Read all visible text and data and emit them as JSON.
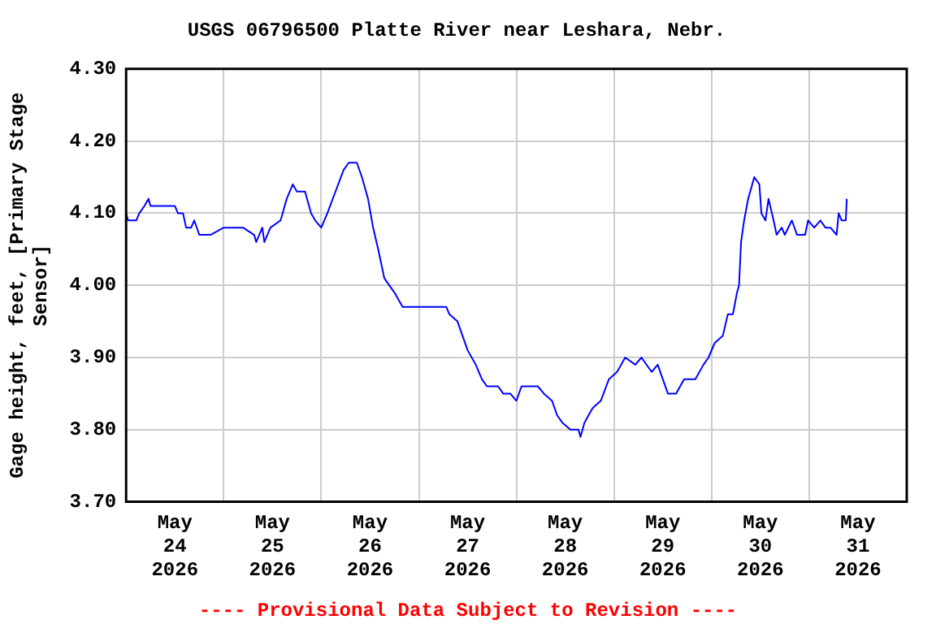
{
  "chart_data": {
    "type": "line",
    "title": "USGS 06796500 Platte River near Leshara, Nebr.",
    "ylabel": "Gage height, feet, [Primary Stage Sensor]",
    "annotations": [
      "---- Provisional Data Subject to Revision ----"
    ],
    "x": [
      "2026-05-24T00:00",
      "2026-05-24T00:30",
      "2026-05-24T02:30",
      "2026-05-24T03:15",
      "2026-05-24T04:30",
      "2026-05-24T05:30",
      "2026-05-24T06:00",
      "2026-05-24T12:00",
      "2026-05-24T12:45",
      "2026-05-24T14:00",
      "2026-05-24T14:45",
      "2026-05-24T16:00",
      "2026-05-24T16:45",
      "2026-05-24T18:00",
      "2026-05-24T20:45",
      "2026-05-25T00:00",
      "2026-05-25T04:45",
      "2026-05-25T07:30",
      "2026-05-25T08:00",
      "2026-05-25T09:30",
      "2026-05-25T10:00",
      "2026-05-25T11:30",
      "2026-05-25T14:00",
      "2026-05-25T15:30",
      "2026-05-25T17:00",
      "2026-05-25T18:00",
      "2026-05-25T20:00",
      "2026-05-25T21:30",
      "2026-05-25T22:30",
      "2026-05-26T00:00",
      "2026-05-26T01:30",
      "2026-05-26T03:30",
      "2026-05-26T05:30",
      "2026-05-26T06:45",
      "2026-05-26T08:45",
      "2026-05-26T10:00",
      "2026-05-26T11:30",
      "2026-05-26T12:45",
      "2026-05-26T14:00",
      "2026-05-26T15:30",
      "2026-05-26T18:00",
      "2026-05-26T20:00",
      "2026-05-27T06:45",
      "2026-05-27T07:30",
      "2026-05-27T09:30",
      "2026-05-27T10:45",
      "2026-05-27T12:00",
      "2026-05-27T14:00",
      "2026-05-27T15:30",
      "2026-05-27T16:45",
      "2026-05-27T19:30",
      "2026-05-27T20:45",
      "2026-05-27T22:30",
      "2026-05-28T00:00",
      "2026-05-28T01:15",
      "2026-05-28T05:15",
      "2026-05-28T06:45",
      "2026-05-28T08:45",
      "2026-05-28T10:00",
      "2026-05-28T11:15",
      "2026-05-28T13:15",
      "2026-05-28T15:15",
      "2026-05-28T15:45",
      "2026-05-28T16:45",
      "2026-05-28T18:45",
      "2026-05-28T20:45",
      "2026-05-28T22:45",
      "2026-05-29T00:45",
      "2026-05-29T02:45",
      "2026-05-29T05:15",
      "2026-05-29T06:45",
      "2026-05-29T09:15",
      "2026-05-29T10:45",
      "2026-05-29T12:00",
      "2026-05-29T13:15",
      "2026-05-29T15:15",
      "2026-05-29T17:15",
      "2026-05-29T20:00",
      "2026-05-29T22:00",
      "2026-05-29T23:15",
      "2026-05-30T00:45",
      "2026-05-30T02:45",
      "2026-05-30T04:00",
      "2026-05-30T05:15",
      "2026-05-30T06:15",
      "2026-05-30T06:45",
      "2026-05-30T07:15",
      "2026-05-30T08:00",
      "2026-05-30T09:00",
      "2026-05-30T10:30",
      "2026-05-30T11:45",
      "2026-05-30T12:15",
      "2026-05-30T13:15",
      "2026-05-30T14:00",
      "2026-05-30T15:15",
      "2026-05-30T16:00",
      "2026-05-30T17:15",
      "2026-05-30T18:00",
      "2026-05-30T19:45",
      "2026-05-30T21:00",
      "2026-05-30T23:00",
      "2026-05-30T23:45",
      "2026-05-31T01:15",
      "2026-05-31T02:45",
      "2026-05-31T04:00",
      "2026-05-31T05:15",
      "2026-05-31T06:45",
      "2026-05-31T07:15",
      "2026-05-31T08:00",
      "2026-05-31T09:00",
      "2026-05-31T09:15"
    ],
    "series": [
      {
        "color": "#0000ff",
        "values": [
          4.1,
          4.09,
          4.09,
          4.1,
          4.11,
          4.12,
          4.11,
          4.11,
          4.1,
          4.1,
          4.08,
          4.08,
          4.09,
          4.07,
          4.07,
          4.08,
          4.08,
          4.07,
          4.06,
          4.08,
          4.06,
          4.08,
          4.09,
          4.12,
          4.14,
          4.13,
          4.13,
          4.1,
          4.09,
          4.08,
          4.1,
          4.13,
          4.16,
          4.17,
          4.17,
          4.15,
          4.12,
          4.08,
          4.05,
          4.01,
          3.99,
          3.97,
          3.97,
          3.96,
          3.95,
          3.93,
          3.91,
          3.89,
          3.87,
          3.86,
          3.86,
          3.85,
          3.85,
          3.84,
          3.86,
          3.86,
          3.85,
          3.84,
          3.82,
          3.81,
          3.8,
          3.8,
          3.79,
          3.81,
          3.83,
          3.84,
          3.87,
          3.88,
          3.9,
          3.89,
          3.9,
          3.88,
          3.89,
          3.87,
          3.85,
          3.85,
          3.87,
          3.87,
          3.89,
          3.9,
          3.92,
          3.93,
          3.96,
          3.96,
          3.99,
          4.0,
          4.06,
          4.09,
          4.12,
          4.15,
          4.14,
          4.1,
          4.09,
          4.12,
          4.09,
          4.07,
          4.08,
          4.07,
          4.09,
          4.07,
          4.07,
          4.09,
          4.08,
          4.09,
          4.08,
          4.08,
          4.07,
          4.1,
          4.09,
          4.09,
          4.12
        ]
      }
    ],
    "xlim": [
      "2026-05-24T00:00",
      "2026-06-01T00:00"
    ],
    "xticks": [
      {
        "value": "2026-05-24T12:00",
        "label": "May 24 2026"
      },
      {
        "value": "2026-05-25T00:00",
        "label": null
      },
      {
        "value": "2026-05-25T12:00",
        "label": "May 25 2026"
      },
      {
        "value": "2026-05-26T00:00",
        "label": null
      },
      {
        "value": "2026-05-26T12:00",
        "label": "May 26 2026"
      },
      {
        "value": "2026-05-27T00:00",
        "label": null
      },
      {
        "value": "2026-05-27T12:00",
        "label": "May 27 2026"
      },
      {
        "value": "2026-05-28T00:00",
        "label": null
      },
      {
        "value": "2026-05-28T12:00",
        "label": "May 28 2026"
      },
      {
        "value": "2026-05-29T00:00",
        "label": null
      },
      {
        "value": "2026-05-29T12:00",
        "label": "May 29 2026"
      },
      {
        "value": "2026-05-30T00:00",
        "label": null
      },
      {
        "value": "2026-05-30T12:00",
        "label": "May 30 2026"
      },
      {
        "value": "2026-05-31T00:00",
        "label": null
      },
      {
        "value": "2026-05-31T12:00",
        "label": "May 31 2026"
      }
    ],
    "ylim": [
      3.7,
      4.3
    ],
    "yticks": [
      {
        "value": 3.7,
        "label": "3.70"
      },
      {
        "value": 3.8,
        "label": "3.80"
      },
      {
        "value": 3.9,
        "label": "3.90"
      },
      {
        "value": 4.0,
        "label": "4.00"
      },
      {
        "value": 4.1,
        "label": "4.10"
      },
      {
        "value": 4.2,
        "label": "4.20"
      },
      {
        "value": 4.3,
        "label": "4.30"
      }
    ],
    "grid": true,
    "legend": false,
    "marker": "none",
    "line_style": "solid"
  }
}
